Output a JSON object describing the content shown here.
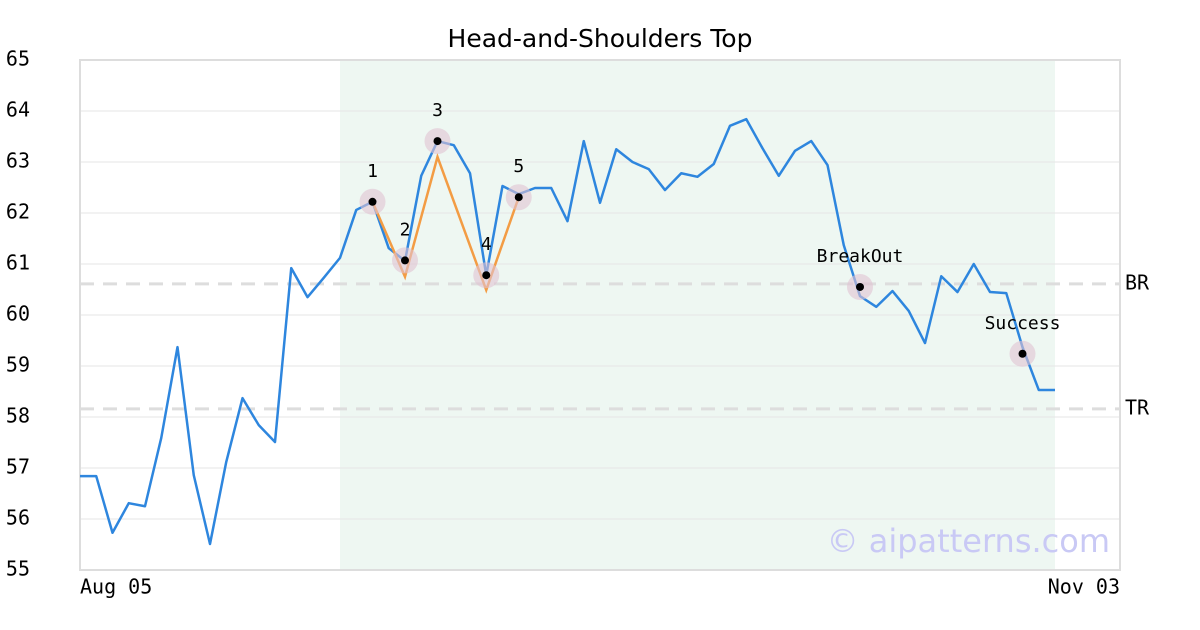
{
  "chart_data": {
    "type": "line",
    "title": "Head-and-Shoulders Top",
    "categories": [
      "Aug 05",
      null,
      null,
      null,
      null,
      null,
      null,
      null,
      null,
      null,
      null,
      null,
      null,
      null,
      null,
      null,
      null,
      null,
      null,
      null,
      null,
      null,
      null,
      null,
      null,
      null,
      null,
      null,
      null,
      null,
      null,
      null,
      null,
      null,
      null,
      null,
      null,
      null,
      null,
      null,
      null,
      null,
      null,
      null,
      null,
      null,
      null,
      null,
      null,
      null,
      null,
      null,
      null,
      null,
      null,
      null,
      null,
      null,
      null,
      null,
      null,
      null,
      null,
      null,
      "Nov 03"
    ],
    "values": [
      56.84,
      56.84,
      55.73,
      56.31,
      56.25,
      57.59,
      59.37,
      56.86,
      55.51,
      57.12,
      58.37,
      57.84,
      57.51,
      60.92,
      60.35,
      60.73,
      61.12,
      62.06,
      62.22,
      61.31,
      61.06,
      62.73,
      63.41,
      63.33,
      62.78,
      60.78,
      62.53,
      62.37,
      62.49,
      62.49,
      61.84,
      63.41,
      62.2,
      63.25,
      63.0,
      62.86,
      62.45,
      62.78,
      62.71,
      62.96,
      63.71,
      63.84,
      63.27,
      62.73,
      63.22,
      63.41,
      62.94,
      61.37,
      60.37,
      60.16,
      60.47,
      60.08,
      59.45,
      60.76,
      60.45,
      61.0,
      60.45,
      60.43,
      59.37,
      58.53,
      58.53,
      null,
      null,
      null,
      null
    ],
    "color": "#2e86de",
    "ylim": [
      55,
      65
    ],
    "yticks": [
      55,
      56,
      57,
      58,
      59,
      60,
      61,
      62,
      63,
      64,
      65
    ],
    "grid": true,
    "highlight": [
      16,
      60
    ],
    "highlight_color": "#eef7f2",
    "pattern_line": {
      "x": [
        18,
        20,
        22,
        25,
        27
      ],
      "values": [
        62.22,
        60.75,
        63.1,
        60.49,
        62.31
      ],
      "color": "#f39c44"
    },
    "annotations": [
      {
        "label": "1",
        "x": 18,
        "y": 62.22
      },
      {
        "label": "2",
        "x": 20,
        "y": 61.07
      },
      {
        "label": "3",
        "x": 22,
        "y": 63.41
      },
      {
        "label": "4",
        "x": 25,
        "y": 60.78
      },
      {
        "label": "5",
        "x": 27,
        "y": 62.31
      },
      {
        "label": "BreakOut",
        "x": 48,
        "y": 60.55
      },
      {
        "label": "Success",
        "x": 58,
        "y": 59.24
      }
    ],
    "hlines": [
      {
        "label": "BR",
        "value": 60.61
      },
      {
        "label": "TR",
        "value": 58.16
      }
    ],
    "watermark": "© aipatterns.com"
  }
}
